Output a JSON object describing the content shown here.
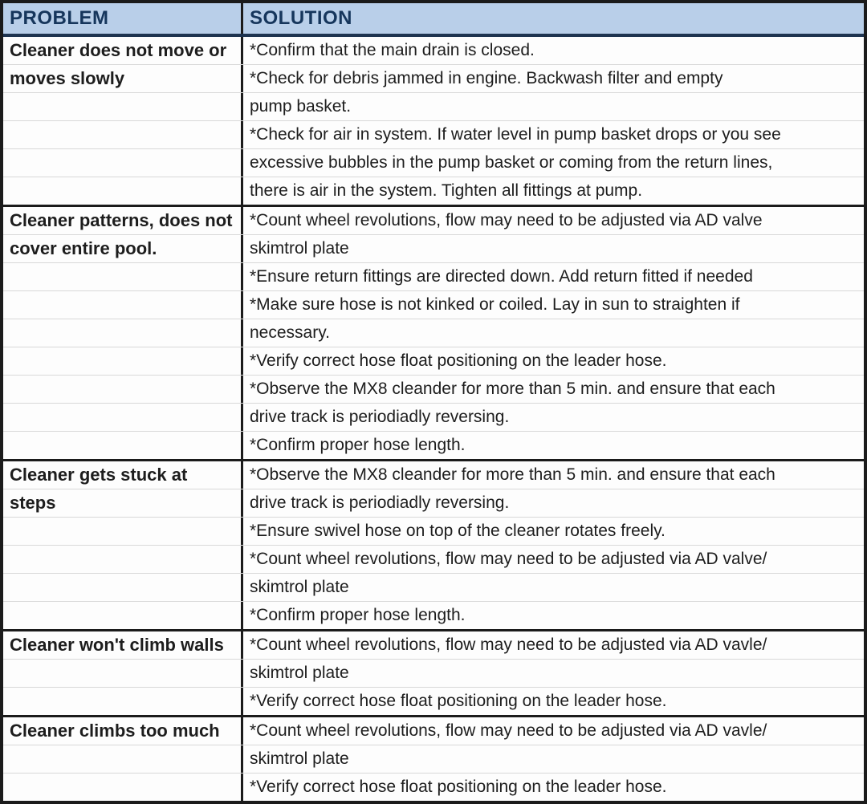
{
  "header": {
    "problem": "PROBLEM",
    "solution": "SOLUTION"
  },
  "rows": [
    {
      "problem_lines": [
        "Cleaner does not move or",
        "moves slowly"
      ],
      "solution_lines": [
        "*Confirm that the main drain is closed.",
        "*Check for debris jammed in engine. Backwash filter and empty",
        "pump basket.",
        "*Check for air in system. If water level in pump basket drops or you see",
        "excessive bubbles in the pump basket or coming from the return lines,",
        "there is air in the system. Tighten all fittings at pump."
      ]
    },
    {
      "problem_lines": [
        "Cleaner patterns, does not",
        "cover entire pool."
      ],
      "solution_lines": [
        "*Count wheel revolutions, flow may need to be adjusted via AD valve",
        "skimtrol plate",
        "*Ensure return fittings are directed down. Add return fitted if needed",
        "*Make sure hose is not kinked or coiled. Lay in sun to straighten if",
        "necessary.",
        "*Verify correct hose float positioning on the leader hose.",
        "*Observe the MX8 cleander for more than 5 min. and ensure that each",
        "drive track is periodiadly reversing.",
        "*Confirm proper hose length."
      ]
    },
    {
      "problem_lines": [
        "Cleaner gets stuck at",
        "steps"
      ],
      "solution_lines": [
        "*Observe the MX8 cleander for more than 5 min. and ensure that each",
        "drive track is periodiadly reversing.",
        "*Ensure swivel hose on top of the cleaner rotates freely.",
        "*Count wheel revolutions, flow may need to be adjusted via AD valve/",
        "skimtrol plate",
        "*Confirm proper hose length."
      ]
    },
    {
      "problem_lines": [
        "Cleaner won't climb walls"
      ],
      "solution_lines": [
        "*Count wheel revolutions, flow may need to be adjusted via AD vavle/",
        "skimtrol plate",
        "*Verify correct hose float positioning on the leader hose."
      ]
    },
    {
      "problem_lines": [
        "Cleaner climbs too much"
      ],
      "solution_lines": [
        "*Count wheel revolutions, flow may need to be adjusted via AD vavle/",
        "skimtrol plate",
        "*Verify correct hose float positioning on the leader hose."
      ]
    }
  ],
  "colors": {
    "header_bg": "#b9cfe9",
    "header_text": "#16365c",
    "border_dark": "#1b1b1b",
    "header_divider": "#1e3450",
    "gridline": "#d8d8d8",
    "body_text": "#1d1d1d",
    "cell_bg": "#fdfdfd"
  }
}
